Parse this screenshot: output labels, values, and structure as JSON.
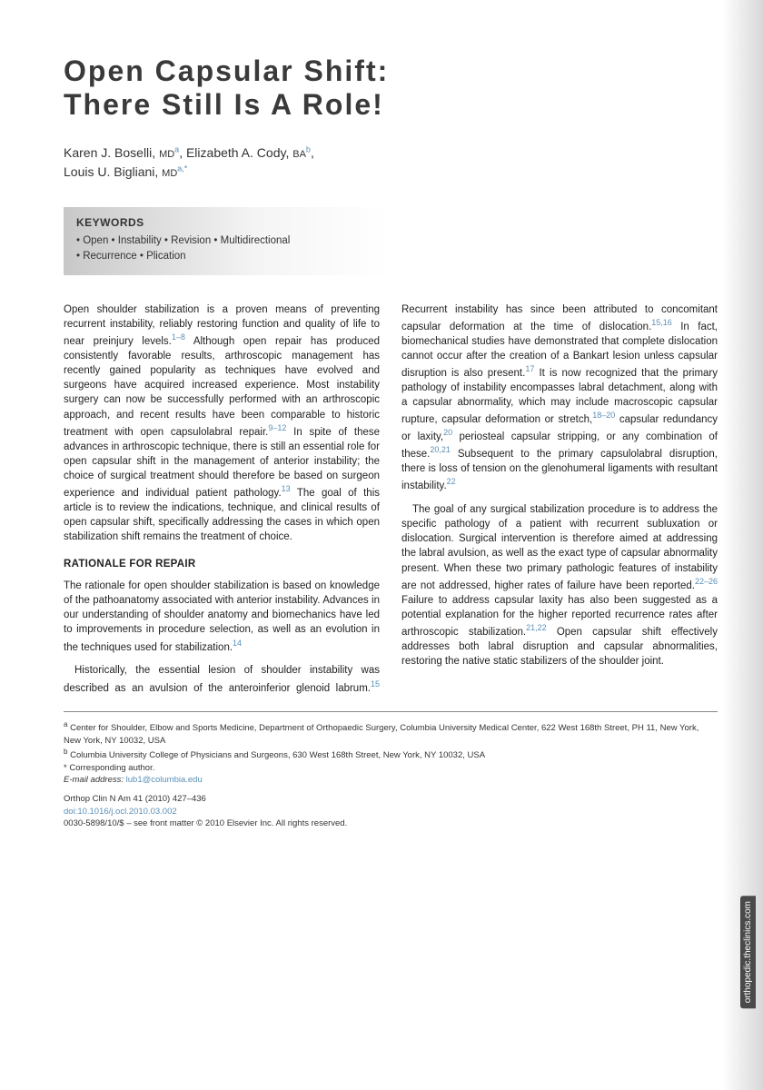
{
  "title_line1": "Open Capsular Shift:",
  "title_line2": "There Still Is A Role!",
  "authors": {
    "a1_name": "Karen J. Boselli,",
    "a1_deg": "MD",
    "a1_aff": "a",
    "a2_name": "Elizabeth A. Cody,",
    "a2_deg": "BA",
    "a2_aff": "b",
    "a3_name": "Louis U. Bigliani,",
    "a3_deg": "MD",
    "a3_aff": "a,*"
  },
  "keywords": {
    "heading": "KEYWORDS",
    "line1": "• Open • Instability • Revision • Multidirectional",
    "line2": "• Recurrence • Plication"
  },
  "body": {
    "p1": "Open shoulder stabilization is a proven means of preventing recurrent instability, reliably restoring function and quality of life to near preinjury levels.",
    "p1_ref1": "1–8",
    "p1b": " Although open repair has produced consistently favorable results, arthroscopic management has recently gained popularity as techniques have evolved and surgeons have acquired increased experience. Most instability surgery can now be successfully performed with an arthroscopic approach, and recent results have been comparable to historic treatment with open capsulolabral repair.",
    "p1_ref2": "9–12",
    "p1c": " In spite of these advances in arthroscopic technique, there is still an essential role for open capsular shift in the management of anterior instability; the choice of surgical treatment should therefore be based on surgeon experience and individual patient pathology.",
    "p1_ref3": "13",
    "p1d": " The goal of this article is to review the indications, technique, and clinical results of open capsular shift, specifically addressing the cases in which open stabilization shift remains the treatment of choice.",
    "rationale_head": "RATIONALE FOR REPAIR",
    "p2": "The rationale for open shoulder stabilization is based on knowledge of the pathoanatomy associated with anterior instability. Advances in our understanding of shoulder anatomy and biomechanics have led to improvements in procedure selection, as well as an evolution in the techniques used for stabilization.",
    "p2_ref1": "14",
    "p3a": "Historically, the essential lesion of shoulder instability was described as an avulsion of the anteroinferior glenoid labrum.",
    "p3_ref1": "15",
    "p3b": " Recurrent instability has since been attributed to concomitant capsular deformation at the time of dislocation.",
    "p3_ref2": "15,16",
    "p3c": " In fact, biomechanical studies have demonstrated that complete dislocation cannot occur after the creation of a Bankart lesion unless capsular disruption is also present.",
    "p3_ref3": "17",
    "p3d": " It is now recognized that the primary pathology of instability encompasses labral detachment, along with a capsular abnormality, which may include macroscopic capsular rupture, capsular deformation or stretch,",
    "p3_ref4": "18–20",
    "p3e": " capsular redundancy or laxity,",
    "p3_ref5": "20",
    "p3f": " periosteal capsular stripping, or any combination of these.",
    "p3_ref6": "20,21",
    "p3g": " Subsequent to the primary capsulolabral disruption, there is loss of tension on the glenohumeral ligaments with resultant instability.",
    "p3_ref7": "22",
    "p4a": "The goal of any surgical stabilization procedure is to address the specific pathology of a patient with recurrent subluxation or dislocation. Surgical intervention is therefore aimed at addressing the labral avulsion, as well as the exact type of capsular abnormality present. When these two primary pathologic features of instability are not addressed, higher rates of failure have been reported.",
    "p4_ref1": "22–26",
    "p4b": " Failure to address capsular laxity has also been suggested as a potential explanation for the higher reported recurrence rates after arthroscopic stabilization.",
    "p4_ref2": "21,22",
    "p4c": " Open capsular shift effectively addresses both labral disruption and capsular abnormalities, restoring the native static stabilizers of the shoulder joint."
  },
  "footer": {
    "aff_a": " Center for Shoulder, Elbow and Sports Medicine, Department of Orthopaedic Surgery, Columbia University Medical Center, 622 West 168th Street, PH 11, New York, New York, NY 10032, USA",
    "aff_b": " Columbia University College of Physicians and Surgeons, 630 West 168th Street, New York, NY 10032, USA",
    "corresponding": "* Corresponding author.",
    "email_label": "E-mail address: ",
    "email": "lub1@columbia.edu",
    "journal": "Orthop Clin N Am 41 (2010) 427–436",
    "doi": "doi:10.1016/j.ocl.2010.03.002",
    "copyright": "0030-5898/10/$ – see front matter © 2010 Elsevier Inc. All rights reserved."
  },
  "side_tab": "orthopedic.theclinics.com"
}
